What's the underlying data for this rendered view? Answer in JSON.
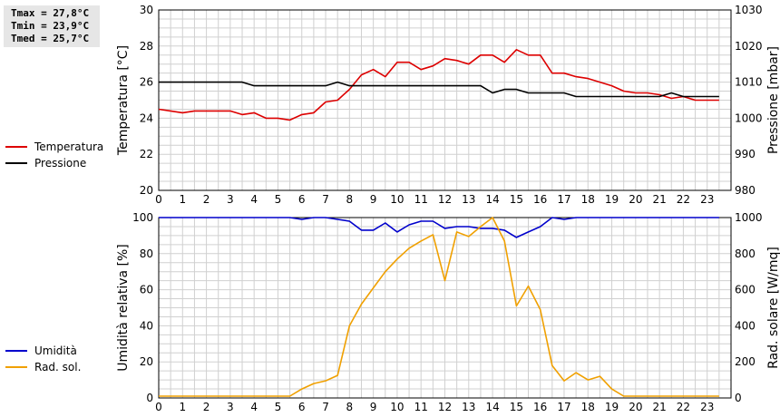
{
  "stats": {
    "tmax": "Tmax = 27,8°C",
    "tmin": "Tmin = 23,9°C",
    "tmed": "Tmed = 25,7°C"
  },
  "chart_data": [
    {
      "type": "line",
      "title": "",
      "ylabel": "Temperatura [°C]",
      "y2label": "Pressione [mbar]",
      "xlim": [
        0,
        24
      ],
      "ylim": [
        20,
        30
      ],
      "y2lim": [
        980,
        1030
      ],
      "x_ticks": [
        "0",
        "1",
        "2",
        "3",
        "4",
        "5",
        "6",
        "7",
        "8",
        "9",
        "10",
        "11",
        "12",
        "13",
        "14",
        "15",
        "16",
        "17",
        "18",
        "19",
        "20",
        "21",
        "22",
        "23"
      ],
      "y_ticks": [
        "20",
        "22",
        "24",
        "26",
        "28",
        "30"
      ],
      "y2_ticks": [
        "980",
        "990",
        "1000",
        "1010",
        "1020",
        "1030"
      ],
      "grid": true,
      "legend": "left",
      "series": [
        {
          "name": "Temperatura",
          "color": "#dd0000",
          "axis": "left",
          "x": [
            0,
            0.5,
            1,
            1.5,
            2,
            2.5,
            3,
            3.5,
            4,
            4.5,
            5,
            5.5,
            6,
            6.5,
            7,
            7.5,
            8,
            8.5,
            9,
            9.5,
            10,
            10.5,
            11,
            11.5,
            12,
            12.5,
            13,
            13.5,
            14,
            14.5,
            15,
            15.5,
            16,
            16.5,
            17,
            17.5,
            18,
            18.5,
            19,
            19.5,
            20,
            20.5,
            21,
            21.5,
            22,
            22.5,
            23,
            23.5
          ],
          "y": [
            24.5,
            24.4,
            24.3,
            24.4,
            24.4,
            24.4,
            24.4,
            24.2,
            24.3,
            24.0,
            24.0,
            23.9,
            24.2,
            24.3,
            24.9,
            25.0,
            25.6,
            26.4,
            26.7,
            26.3,
            27.1,
            27.1,
            26.7,
            26.9,
            27.3,
            27.2,
            27.0,
            27.5,
            27.5,
            27.1,
            27.8,
            27.5,
            27.5,
            26.5,
            26.5,
            26.3,
            26.2,
            26.0,
            25.8,
            25.5,
            25.4,
            25.4,
            25.3,
            25.1,
            25.2,
            25.0,
            25.0,
            25.0
          ]
        },
        {
          "name": "Pressione",
          "color": "#000000",
          "axis": "right",
          "x": [
            0,
            0.5,
            1,
            1.5,
            2,
            2.5,
            3,
            3.5,
            4,
            4.5,
            5,
            5.5,
            6,
            6.5,
            7,
            7.5,
            8,
            8.5,
            9,
            9.5,
            10,
            10.5,
            11,
            11.5,
            12,
            12.5,
            13,
            13.5,
            14,
            14.5,
            15,
            15.5,
            16,
            16.5,
            17,
            17.5,
            18,
            18.5,
            19,
            19.5,
            20,
            20.5,
            21,
            21.5,
            22,
            22.5,
            23,
            23.5
          ],
          "y": [
            1010,
            1010,
            1010,
            1010,
            1010,
            1010,
            1010,
            1010,
            1009,
            1009,
            1009,
            1009,
            1009,
            1009,
            1009,
            1010,
            1009,
            1009,
            1009,
            1009,
            1009,
            1009,
            1009,
            1009,
            1009,
            1009,
            1009,
            1009,
            1007,
            1008,
            1008,
            1007,
            1007,
            1007,
            1007,
            1006,
            1006,
            1006,
            1006,
            1006,
            1006,
            1006,
            1006,
            1007,
            1006,
            1006,
            1006,
            1006
          ]
        }
      ]
    },
    {
      "type": "line",
      "title": "",
      "ylabel": "Umidità relativa [%]",
      "y2label": "Rad. solare [W/mq]",
      "xlim": [
        0,
        24
      ],
      "ylim": [
        0,
        100
      ],
      "y2lim": [
        0,
        1000
      ],
      "x_ticks": [
        "0",
        "1",
        "2",
        "3",
        "4",
        "5",
        "6",
        "7",
        "8",
        "9",
        "10",
        "11",
        "12",
        "13",
        "14",
        "15",
        "16",
        "17",
        "18",
        "19",
        "20",
        "21",
        "22",
        "23"
      ],
      "y_ticks": [
        "0",
        "20",
        "40",
        "60",
        "80",
        "100"
      ],
      "y2_ticks": [
        "0",
        "200",
        "400",
        "600",
        "800",
        "1000"
      ],
      "grid": true,
      "legend": "left",
      "series": [
        {
          "name": "Umidità",
          "color": "#0000cc",
          "axis": "left",
          "x": [
            0,
            0.5,
            1,
            1.5,
            2,
            2.5,
            3,
            3.5,
            4,
            4.5,
            5,
            5.5,
            6,
            6.5,
            7,
            7.5,
            8,
            8.5,
            9,
            9.5,
            10,
            10.5,
            11,
            11.5,
            12,
            12.5,
            13,
            13.5,
            14,
            14.5,
            15,
            15.5,
            16,
            16.5,
            17,
            17.5,
            18,
            18.5,
            19,
            19.5,
            20,
            20.5,
            21,
            21.5,
            22,
            22.5,
            23,
            23.5
          ],
          "y": [
            100,
            100,
            100,
            100,
            100,
            100,
            100,
            100,
            100,
            100,
            100,
            100,
            99,
            100,
            100,
            99,
            98,
            93,
            93,
            97,
            92,
            96,
            98,
            98,
            94,
            95,
            95,
            94,
            94,
            93,
            89,
            92,
            95,
            100,
            99,
            100,
            100,
            100,
            100,
            100,
            100,
            100,
            100,
            100,
            100,
            100,
            100,
            100
          ]
        },
        {
          "name": "Rad. sol.",
          "color": "#f0a000",
          "axis": "right",
          "x": [
            0,
            0.5,
            1,
            1.5,
            2,
            2.5,
            3,
            3.5,
            4,
            4.5,
            5,
            5.5,
            6,
            6.5,
            7,
            7.5,
            8,
            8.5,
            9,
            9.5,
            10,
            10.5,
            11,
            11.5,
            12,
            12.5,
            13,
            13.5,
            14,
            14.5,
            15,
            15.5,
            16,
            16.5,
            17,
            17.5,
            18,
            18.5,
            19,
            19.5,
            20,
            20.5,
            21,
            21.5,
            22,
            22.5,
            23,
            23.5
          ],
          "y": [
            10,
            10,
            10,
            10,
            10,
            10,
            10,
            10,
            10,
            10,
            10,
            10,
            50,
            80,
            95,
            125,
            400,
            520,
            610,
            700,
            770,
            830,
            870,
            905,
            650,
            920,
            895,
            950,
            1000,
            870,
            510,
            620,
            490,
            180,
            95,
            140,
            100,
            120,
            50,
            10,
            10,
            10,
            10,
            10,
            10,
            10,
            10,
            10
          ]
        }
      ]
    }
  ]
}
